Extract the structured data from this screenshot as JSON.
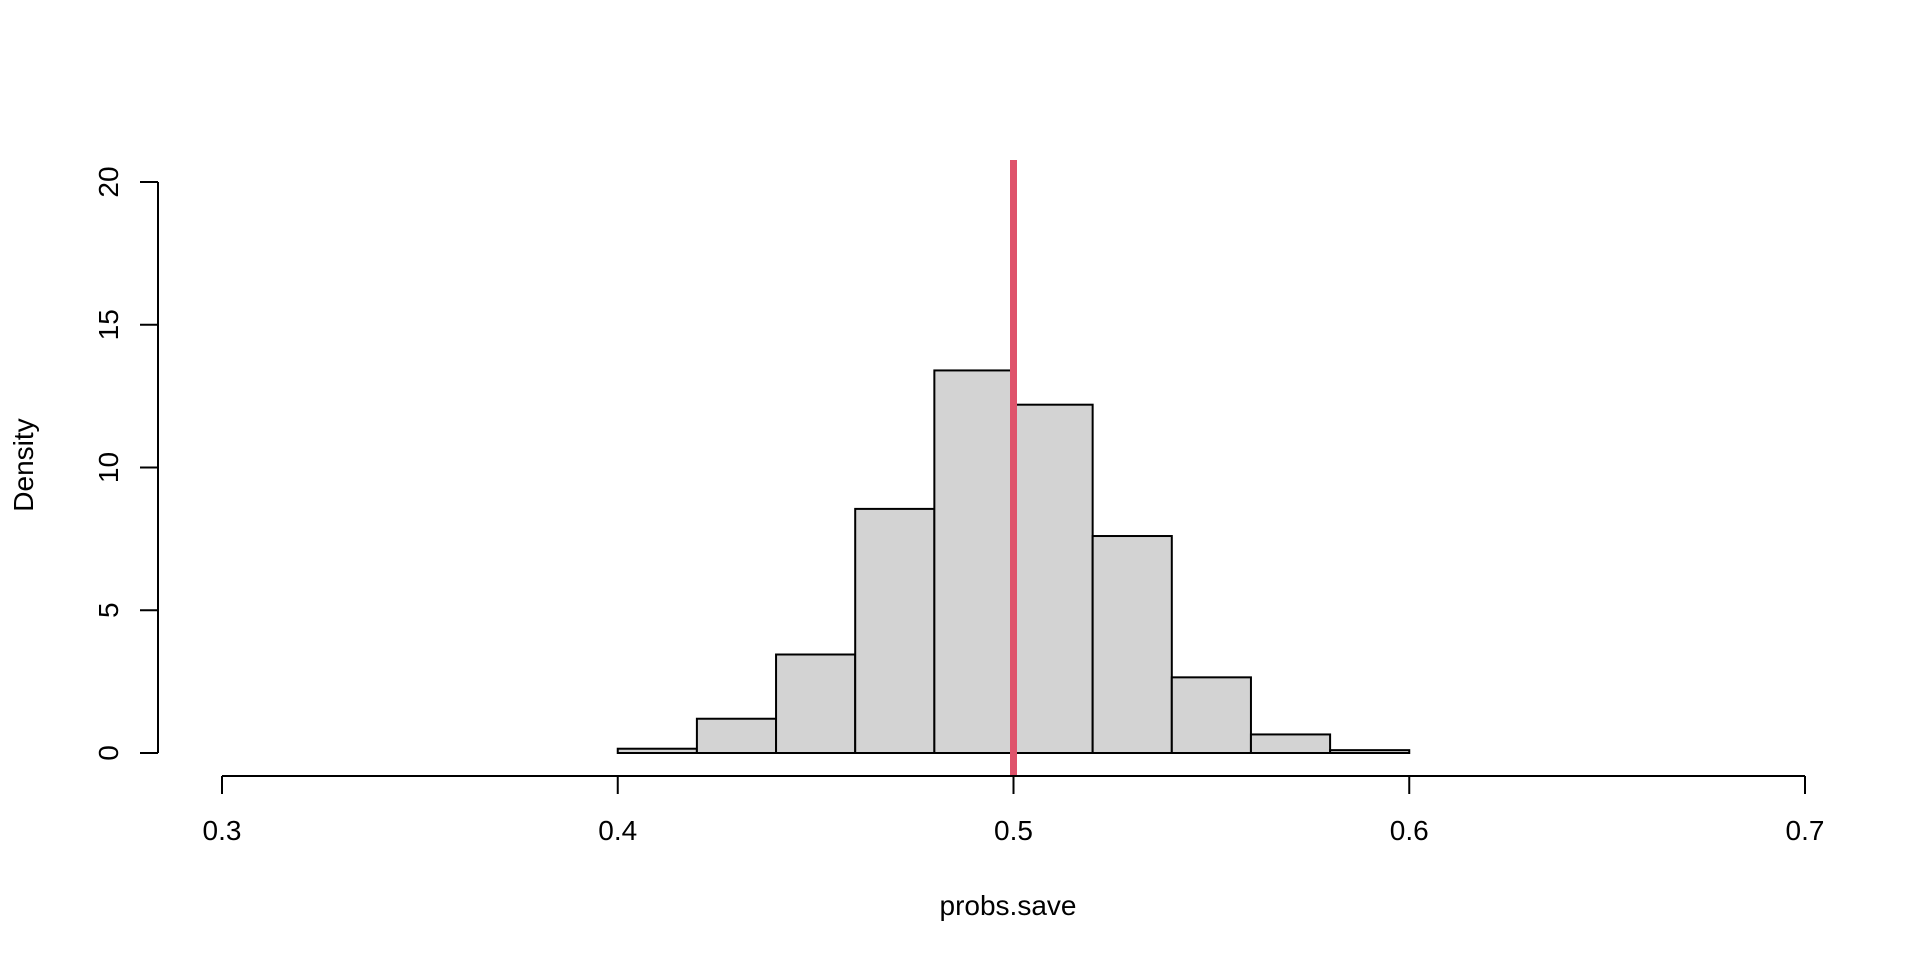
{
  "chart_data": {
    "type": "bar",
    "title": "",
    "xlabel": "probs.save",
    "ylabel": "Density",
    "xlim": [
      0.3,
      0.7
    ],
    "ylim": [
      0,
      20
    ],
    "x_ticks": [
      "0.3",
      "0.4",
      "0.5",
      "0.6",
      "0.7"
    ],
    "y_ticks": [
      "0",
      "5",
      "10",
      "15",
      "20"
    ],
    "grid": false,
    "bins": [
      {
        "x0": 0.4,
        "x1": 0.42,
        "density": 0.15
      },
      {
        "x0": 0.42,
        "x1": 0.44,
        "density": 1.2
      },
      {
        "x0": 0.44,
        "x1": 0.46,
        "density": 3.45
      },
      {
        "x0": 0.46,
        "x1": 0.48,
        "density": 8.55
      },
      {
        "x0": 0.48,
        "x1": 0.5,
        "density": 13.4
      },
      {
        "x0": 0.5,
        "x1": 0.52,
        "density": 12.2
      },
      {
        "x0": 0.52,
        "x1": 0.54,
        "density": 7.6
      },
      {
        "x0": 0.54,
        "x1": 0.56,
        "density": 2.65
      },
      {
        "x0": 0.56,
        "x1": 0.58,
        "density": 0.65
      },
      {
        "x0": 0.58,
        "x1": 0.6,
        "density": 0.1
      },
      {
        "x0": 0.6,
        "x1": 0.62,
        "density": 0.0
      }
    ],
    "reference_line": {
      "x": 0.5,
      "color": "#DF536B"
    },
    "bar_fill": "#D3D3D3",
    "bar_stroke": "#000000"
  }
}
